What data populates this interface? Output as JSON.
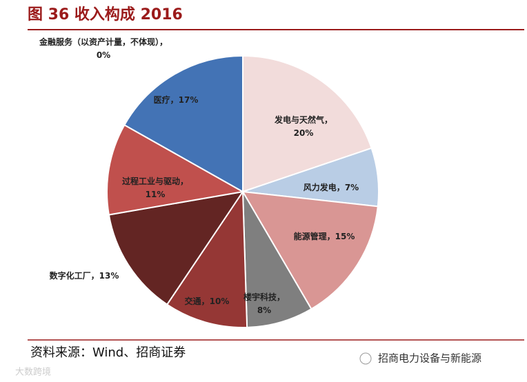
{
  "chart_data": {
    "type": "pie",
    "title": "图 36 收入构成 2016",
    "categories": [
      "发电与天然气，",
      "风力发电，",
      "能源管理，",
      "楼宇科技，",
      "交通，",
      "数字化工厂，",
      "过程工业与驱动，",
      "医疗，",
      "金融服务（以资产计量，不体现），"
    ],
    "values": [
      20,
      7,
      15,
      8,
      10,
      13,
      11,
      17,
      0
    ],
    "value_labels": [
      "20%",
      "7%",
      "15%",
      "8%",
      "10%",
      "13%",
      "11%",
      "17%",
      "0%"
    ],
    "colors": [
      "#f2dcdb",
      "#b9cde5",
      "#d99694",
      "#7f7f7f",
      "#953735",
      "#632523",
      "#c0504d",
      "#4373b5",
      "#8eb4e3"
    ],
    "source": "资料来源：Wind、招商证券",
    "watermark": "招商电力设备与新能源",
    "corner_mark": "大数跨境"
  }
}
